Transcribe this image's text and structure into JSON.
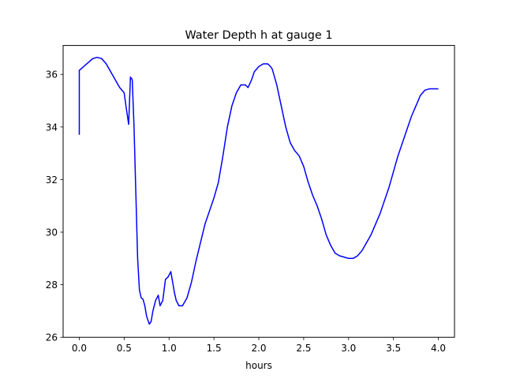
{
  "chart_data": {
    "type": "line",
    "title": "Water Depth h at gauge 1",
    "xlabel": "hours",
    "ylabel": "",
    "xlim": [
      -0.18,
      4.18
    ],
    "ylim": [
      26,
      37.1
    ],
    "xticks": [
      0.0,
      0.5,
      1.0,
      1.5,
      2.0,
      2.5,
      3.0,
      3.5,
      4.0
    ],
    "xtick_labels": [
      "0.0",
      "0.5",
      "1.0",
      "1.5",
      "2.0",
      "2.5",
      "3.0",
      "3.5",
      "4.0"
    ],
    "yticks": [
      26,
      28,
      30,
      32,
      34,
      36
    ],
    "ytick_labels": [
      "26",
      "28",
      "30",
      "32",
      "34",
      "36"
    ],
    "grid": false,
    "legend": "none",
    "series": [
      {
        "color": "#0000ff",
        "x": [
          0.0,
          0.0,
          0.05,
          0.1,
          0.15,
          0.2,
          0.25,
          0.3,
          0.35,
          0.4,
          0.45,
          0.5,
          0.52,
          0.55,
          0.57,
          0.59,
          0.61,
          0.63,
          0.65,
          0.67,
          0.69,
          0.71,
          0.73,
          0.75,
          0.78,
          0.8,
          0.82,
          0.85,
          0.88,
          0.9,
          0.93,
          0.96,
          0.99,
          1.02,
          1.05,
          1.06,
          1.08,
          1.11,
          1.15,
          1.2,
          1.25,
          1.3,
          1.35,
          1.4,
          1.45,
          1.5,
          1.55,
          1.6,
          1.65,
          1.7,
          1.75,
          1.8,
          1.85,
          1.88,
          1.92,
          1.95,
          2.0,
          2.05,
          2.1,
          2.13,
          2.15,
          2.2,
          2.25,
          2.3,
          2.35,
          2.4,
          2.45,
          2.5,
          2.55,
          2.6,
          2.65,
          2.7,
          2.75,
          2.8,
          2.85,
          2.9,
          2.95,
          3.0,
          3.05,
          3.1,
          3.15,
          3.2,
          3.25,
          3.3,
          3.35,
          3.4,
          3.45,
          3.5,
          3.55,
          3.6,
          3.65,
          3.7,
          3.75,
          3.8,
          3.85,
          3.9,
          3.95,
          4.0
        ],
        "y": [
          33.7,
          36.15,
          36.3,
          36.45,
          36.6,
          36.65,
          36.6,
          36.4,
          36.1,
          35.8,
          35.5,
          35.3,
          34.8,
          34.1,
          35.9,
          35.8,
          34.0,
          31.5,
          29.0,
          27.8,
          27.5,
          27.45,
          27.2,
          26.8,
          26.5,
          26.6,
          27.0,
          27.4,
          27.6,
          27.2,
          27.4,
          28.2,
          28.3,
          28.5,
          27.9,
          27.7,
          27.4,
          27.2,
          27.2,
          27.5,
          28.1,
          28.9,
          29.6,
          30.3,
          30.8,
          31.3,
          31.9,
          32.9,
          34.0,
          34.8,
          35.3,
          35.6,
          35.6,
          35.5,
          35.8,
          36.1,
          36.3,
          36.4,
          36.4,
          36.3,
          36.2,
          35.6,
          34.8,
          34.0,
          33.4,
          33.1,
          32.9,
          32.5,
          31.9,
          31.4,
          31.0,
          30.5,
          29.9,
          29.5,
          29.2,
          29.1,
          29.05,
          29.0,
          29.0,
          29.1,
          29.3,
          29.6,
          29.9,
          30.3,
          30.7,
          31.2,
          31.7,
          32.3,
          32.9,
          33.4,
          33.9,
          34.4,
          34.8,
          35.2,
          35.4,
          35.45,
          35.45,
          35.45
        ]
      }
    ]
  }
}
